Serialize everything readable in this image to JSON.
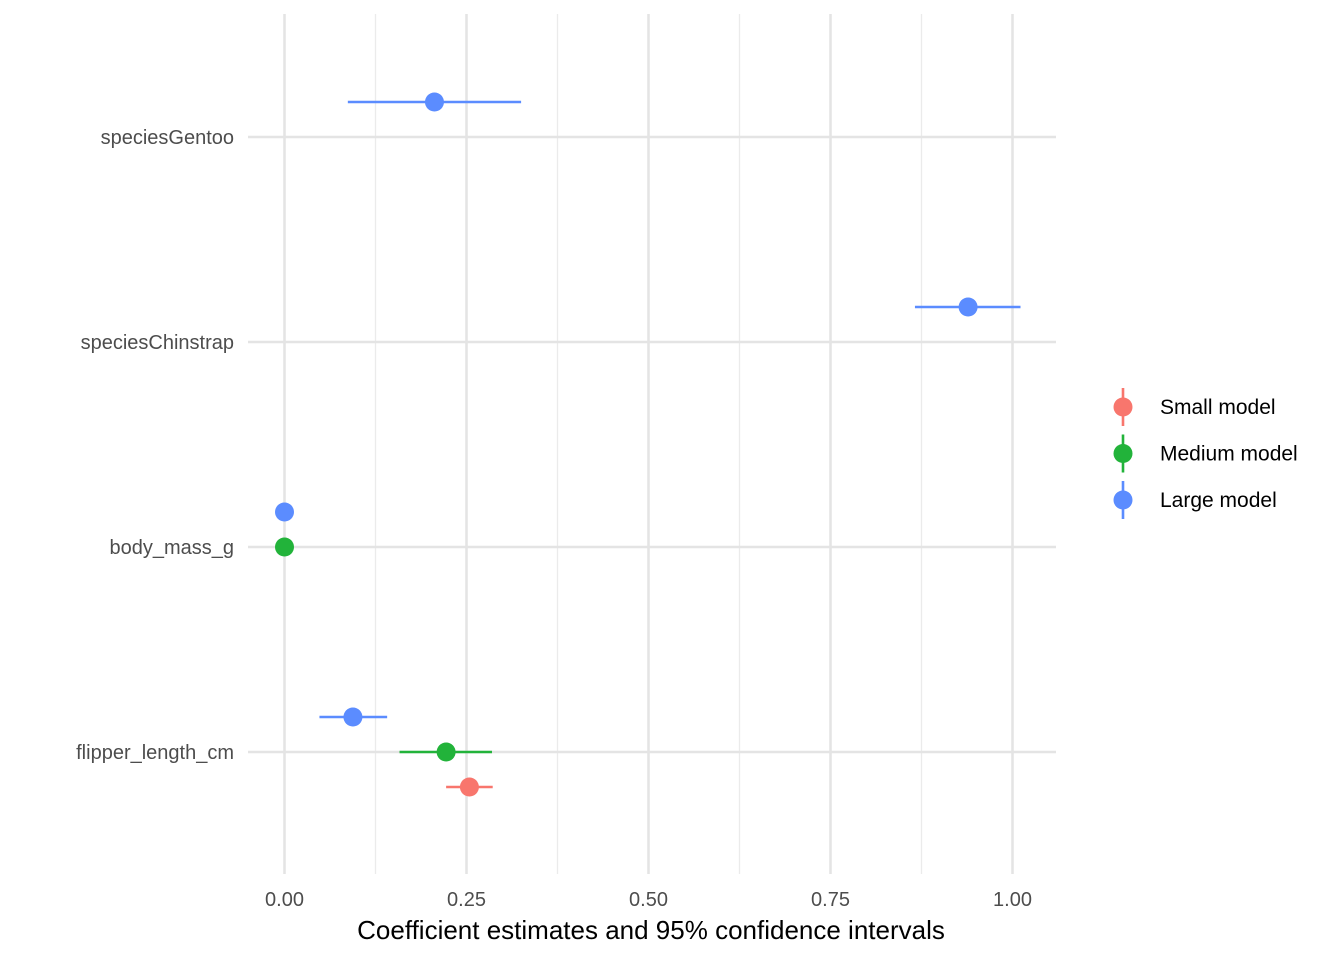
{
  "chart_data": {
    "type": "scatter",
    "subtype": "coefficient-plot",
    "title": "",
    "xlabel": "Coefficient estimates and 95% confidence intervals",
    "ylabel": "",
    "xlim": [
      -0.1,
      1.06
    ],
    "xticks": [
      0.0,
      0.25,
      0.5,
      0.75,
      1.0
    ],
    "xtick_labels": [
      "0.00",
      "0.25",
      "0.50",
      "0.75",
      "1.00"
    ],
    "categories": [
      "flipper_length_cm",
      "body_mass_g",
      "speciesChinstrap",
      "speciesGentoo"
    ],
    "grid": true,
    "legend_position": "right",
    "series": [
      {
        "name": "Small model",
        "color": "#F8766D",
        "points": [
          {
            "term": "flipper_length_cm",
            "estimate": 0.254,
            "low": 0.222,
            "high": 0.286
          }
        ]
      },
      {
        "name": "Medium model",
        "color": "#22B33A",
        "points": [
          {
            "term": "flipper_length_cm",
            "estimate": 0.222,
            "low": 0.158,
            "high": 0.285
          },
          {
            "term": "body_mass_g",
            "estimate": 0.0,
            "low": 0.0,
            "high": 0.0
          }
        ]
      },
      {
        "name": "Large model",
        "color": "#5B8CFF",
        "points": [
          {
            "term": "flipper_length_cm",
            "estimate": 0.094,
            "low": 0.048,
            "high": 0.141
          },
          {
            "term": "body_mass_g",
            "estimate": 0.0,
            "low": 0.0,
            "high": 0.0
          },
          {
            "term": "speciesChinstrap",
            "estimate": 0.939,
            "low": 0.866,
            "high": 1.011
          },
          {
            "term": "speciesGentoo",
            "estimate": 0.206,
            "low": 0.087,
            "high": 0.325
          }
        ]
      }
    ]
  }
}
